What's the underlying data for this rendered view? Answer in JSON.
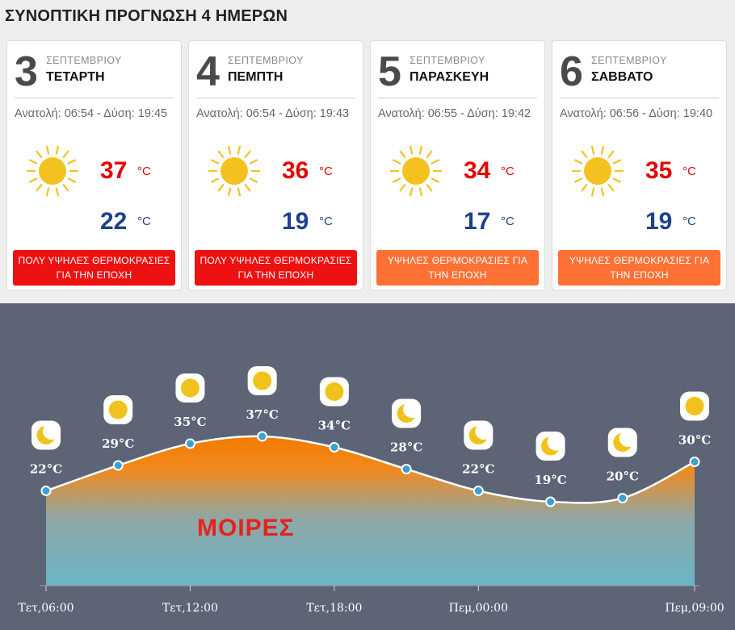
{
  "title": "ΣΥΝΟΠΤΙΚΗ ΠΡΟΓΝΩΣΗ 4 ΗΜΕΡΩΝ",
  "colors": {
    "max": "#e60000",
    "min": "#1f3f8f",
    "badge_red": "#ee1111",
    "badge_orange": "#fd7135",
    "chart_bg": "#5d6476"
  },
  "days": [
    {
      "num": "3",
      "month": "ΣΕΠΤΕΜΒΡΙΟΥ",
      "weekday": "ΤΕΤΑΡΤΗ",
      "sun": "Ανατολή: 06:54 - Δύση: 19:45",
      "icon": "sun-icon",
      "tmax": "37",
      "tmin": "22",
      "unit": "°C",
      "badge": "ΠΟΛΥ ΥΨΗΛΕΣ ΘΕΡΜΟΚΡΑΣΙΕΣ ΓΙΑ ΤΗΝ ΕΠΟΧΗ",
      "badge_color": "#ee1111"
    },
    {
      "num": "4",
      "month": "ΣΕΠΤΕΜΒΡΙΟΥ",
      "weekday": "ΠΕΜΠΤΗ",
      "sun": "Ανατολή: 06:54 - Δύση: 19:43",
      "icon": "sun-icon",
      "tmax": "36",
      "tmin": "19",
      "unit": "°C",
      "badge": "ΠΟΛΥ ΥΨΗΛΕΣ ΘΕΡΜΟΚΡΑΣΙΕΣ ΓΙΑ ΤΗΝ ΕΠΟΧΗ",
      "badge_color": "#ee1111"
    },
    {
      "num": "5",
      "month": "ΣΕΠΤΕΜΒΡΙΟΥ",
      "weekday": "ΠΑΡΑΣΚΕΥΗ",
      "sun": "Ανατολή: 06:55 - Δύση: 19:42",
      "icon": "sun-icon",
      "tmax": "34",
      "tmin": "17",
      "unit": "°C",
      "badge": "ΥΨΗΛΕΣ ΘΕΡΜΟΚΡΑΣΙΕΣ ΓΙΑ ΤΗΝ ΕΠΟΧΗ",
      "badge_color": "#fd7135"
    },
    {
      "num": "6",
      "month": "ΣΕΠΤΕΜΒΡΙΟΥ",
      "weekday": "ΣΑΒΒΑΤΟ",
      "sun": "Ανατολή: 06:56 - Δύση: 19:40",
      "icon": "sun-icon",
      "tmax": "35",
      "tmin": "19",
      "unit": "°C",
      "badge": "ΥΨΗΛΕΣ ΘΕΡΜΟΚΡΑΣΙΕΣ ΓΙΑ ΤΗΝ ΕΠΟΧΗ",
      "badge_color": "#fd7135"
    }
  ],
  "chart_data": {
    "type": "area",
    "watermark": "ΜΟΙΡΕΣ",
    "unit": "°C",
    "points": [
      {
        "hour": 0,
        "temp": 22,
        "label": "22°C",
        "icon": "moon-icon"
      },
      {
        "hour": 3,
        "temp": 29,
        "label": "29°C",
        "icon": "sun-icon"
      },
      {
        "hour": 6,
        "temp": 35,
        "label": "35°C",
        "icon": "sun-icon"
      },
      {
        "hour": 9,
        "temp": 37,
        "label": "37°C",
        "icon": "sun-icon"
      },
      {
        "hour": 12,
        "temp": 34,
        "label": "34°C",
        "icon": "sun-icon"
      },
      {
        "hour": 15,
        "temp": 28,
        "label": "28°C",
        "icon": "moon-icon"
      },
      {
        "hour": 18,
        "temp": 22,
        "label": "22°C",
        "icon": "moon-icon"
      },
      {
        "hour": 21,
        "temp": 19,
        "label": "19°C",
        "icon": "moon-icon"
      },
      {
        "hour": 24,
        "temp": 20,
        "label": "20°C",
        "icon": "moon-icon"
      },
      {
        "hour": 27,
        "temp": 30,
        "label": "30°C",
        "icon": "sun-icon"
      }
    ],
    "x_ticks": [
      {
        "hour": 0,
        "label": "Τετ,06:00"
      },
      {
        "hour": 6,
        "label": "Τετ,12:00"
      },
      {
        "hour": 12,
        "label": "Τετ,18:00"
      },
      {
        "hour": 18,
        "label": "Πεμ,00:00"
      },
      {
        "hour": 27,
        "label": "Πεμ,09:00"
      }
    ]
  }
}
